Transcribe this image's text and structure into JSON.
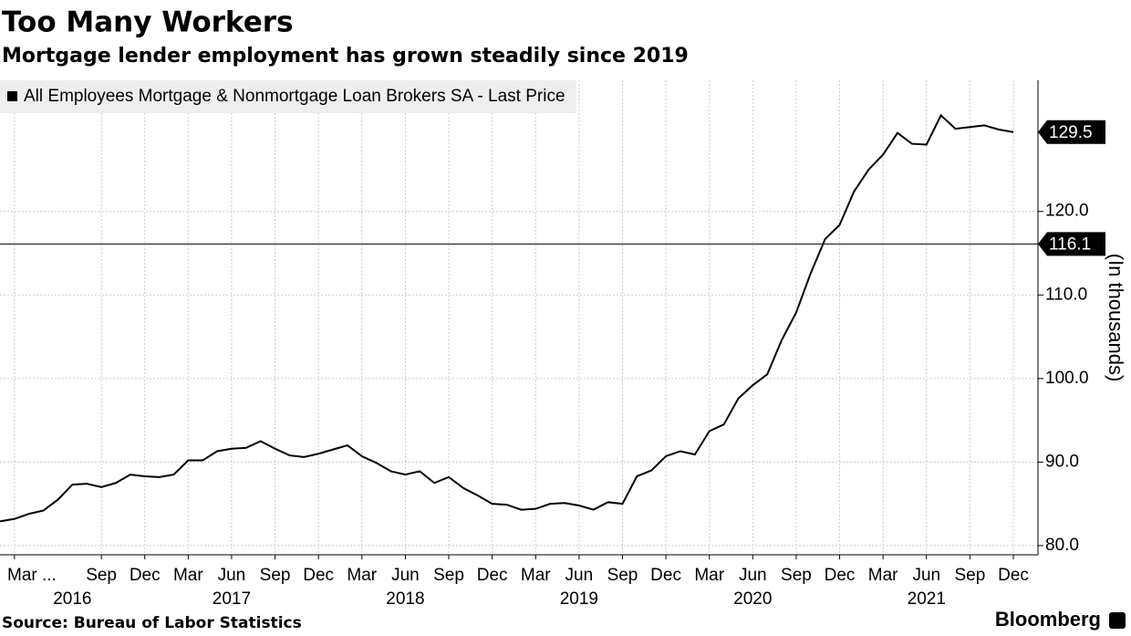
{
  "chart_data": {
    "type": "line",
    "title": "Too Many Workers",
    "subtitle": "Mortgage lender employment has grown steadily since 2019",
    "y_label": "(In thousands)",
    "source": "Source: Bureau of Labor Statistics",
    "brand": "Bloomberg",
    "legend_position": "top-left",
    "grid": true,
    "x": [
      "2016-02",
      "2016-03",
      "2016-04",
      "2016-05",
      "2016-06",
      "2016-07",
      "2016-08",
      "2016-09",
      "2016-10",
      "2016-11",
      "2016-12",
      "2017-01",
      "2017-02",
      "2017-03",
      "2017-04",
      "2017-05",
      "2017-06",
      "2017-07",
      "2017-08",
      "2017-09",
      "2017-10",
      "2017-11",
      "2017-12",
      "2018-01",
      "2018-02",
      "2018-03",
      "2018-04",
      "2018-05",
      "2018-06",
      "2018-07",
      "2018-08",
      "2018-09",
      "2018-10",
      "2018-11",
      "2018-12",
      "2019-01",
      "2019-02",
      "2019-03",
      "2019-04",
      "2019-05",
      "2019-06",
      "2019-07",
      "2019-08",
      "2019-09",
      "2019-10",
      "2019-11",
      "2019-12",
      "2020-01",
      "2020-02",
      "2020-03",
      "2020-04",
      "2020-05",
      "2020-06",
      "2020-07",
      "2020-08",
      "2020-09",
      "2020-10",
      "2020-11",
      "2020-12",
      "2021-01",
      "2021-02",
      "2021-03",
      "2021-04",
      "2021-05",
      "2021-06",
      "2021-07",
      "2021-08",
      "2021-09",
      "2021-10",
      "2021-11",
      "2021-12"
    ],
    "series": [
      {
        "name": "All Employees Mortgage & Nonmortgage Loan Brokers SA - Last Price",
        "color": "#000000",
        "values": [
          82.9,
          83.2,
          83.8,
          84.2,
          85.5,
          87.3,
          87.4,
          87.0,
          87.5,
          88.5,
          88.3,
          88.2,
          88.5,
          90.2,
          90.2,
          91.3,
          91.6,
          91.7,
          92.5,
          91.6,
          90.8,
          90.6,
          91.0,
          91.5,
          92.0,
          90.7,
          89.9,
          88.9,
          88.5,
          88.9,
          87.5,
          88.2,
          86.9,
          86.0,
          85.0,
          84.9,
          84.3,
          84.4,
          85.0,
          85.1,
          84.8,
          84.3,
          85.2,
          85.0,
          88.3,
          89.0,
          90.7,
          91.3,
          90.9,
          93.7,
          94.5,
          97.6,
          99.2,
          100.5,
          104.6,
          107.9,
          112.6,
          116.7,
          118.4,
          122.4,
          125.0,
          126.8,
          129.4,
          128.1,
          128.0,
          131.5,
          129.9,
          130.1,
          130.3,
          129.8,
          129.5
        ]
      }
    ],
    "reference_line": {
      "value": 116.1
    },
    "xlim": [
      "2016-02",
      "2021-12"
    ],
    "xticks": [
      {
        "value": "2016-03",
        "label": "Mar ..."
      },
      {
        "value": "2016-09",
        "label": "Sep"
      },
      {
        "value": "2016-12",
        "label": "Dec"
      },
      {
        "value": "2017-03",
        "label": "Mar"
      },
      {
        "value": "2017-06",
        "label": "Jun"
      },
      {
        "value": "2017-09",
        "label": "Sep"
      },
      {
        "value": "2017-12",
        "label": "Dec"
      },
      {
        "value": "2018-03",
        "label": "Mar"
      },
      {
        "value": "2018-06",
        "label": "Jun"
      },
      {
        "value": "2018-09",
        "label": "Sep"
      },
      {
        "value": "2018-12",
        "label": "Dec"
      },
      {
        "value": "2019-03",
        "label": "Mar"
      },
      {
        "value": "2019-06",
        "label": "Jun"
      },
      {
        "value": "2019-09",
        "label": "Sep"
      },
      {
        "value": "2019-12",
        "label": "Dec"
      },
      {
        "value": "2020-03",
        "label": "Mar"
      },
      {
        "value": "2020-06",
        "label": "Jun"
      },
      {
        "value": "2020-09",
        "label": "Sep"
      },
      {
        "value": "2020-12",
        "label": "Dec"
      },
      {
        "value": "2021-03",
        "label": "Mar"
      },
      {
        "value": "2021-06",
        "label": "Jun"
      },
      {
        "value": "2021-09",
        "label": "Sep"
      },
      {
        "value": "2021-12",
        "label": "Dec"
      }
    ],
    "year_labels": [
      {
        "value": "2016-07",
        "label": "2016"
      },
      {
        "value": "2017-06",
        "label": "2017"
      },
      {
        "value": "2018-06",
        "label": "2018"
      },
      {
        "value": "2019-06",
        "label": "2019"
      },
      {
        "value": "2020-06",
        "label": "2020"
      },
      {
        "value": "2021-06",
        "label": "2021"
      }
    ],
    "ylim": [
      78.9,
      135.7
    ],
    "yticks": [
      {
        "value": 80,
        "label": "80.0"
      },
      {
        "value": 90,
        "label": "90.0"
      },
      {
        "value": 100,
        "label": "100.0"
      },
      {
        "value": 110,
        "label": "110.0"
      },
      {
        "value": 120,
        "label": "120.0"
      }
    ]
  }
}
